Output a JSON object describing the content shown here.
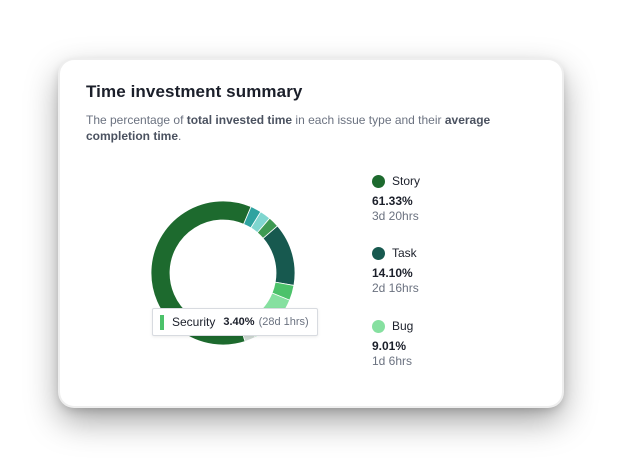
{
  "card": {
    "title": "Time investment summary",
    "description_parts": [
      {
        "text": "The percentage of ",
        "bold": false
      },
      {
        "text": "total invested time",
        "bold": true
      },
      {
        "text": " in each issue type and their ",
        "bold": false
      },
      {
        "text": "average",
        "bold": true
      },
      {
        "text": " ",
        "bold": false
      },
      {
        "text": "completion time",
        "bold": true
      },
      {
        "text": ".",
        "bold": false
      }
    ]
  },
  "chart_data": {
    "type": "pie",
    "series": [
      {
        "name": "Story",
        "percent": 61.33,
        "color": "#1d6a2e"
      },
      {
        "name": "Task",
        "percent": 14.1,
        "color": "#17594f"
      },
      {
        "name": "Bug",
        "percent": 9.01,
        "color": "#86e0a0"
      },
      {
        "name": "Security",
        "percent": 3.4,
        "color": "#4cc26a"
      }
    ]
  },
  "tooltip": {
    "label": "Security",
    "value": "3.40%",
    "time": "(28d 1hrs)",
    "color": "#4cc26a"
  },
  "legend": [
    {
      "label": "Story",
      "percent": "61.33%",
      "time": "3d 20hrs",
      "color": "#1d6a2e"
    },
    {
      "label": "Task",
      "percent": "14.10%",
      "time": "2d 16hrs",
      "color": "#17594f"
    },
    {
      "label": "Bug",
      "percent": "9.01%",
      "time": "1d 6hrs",
      "color": "#86e0a0"
    }
  ]
}
